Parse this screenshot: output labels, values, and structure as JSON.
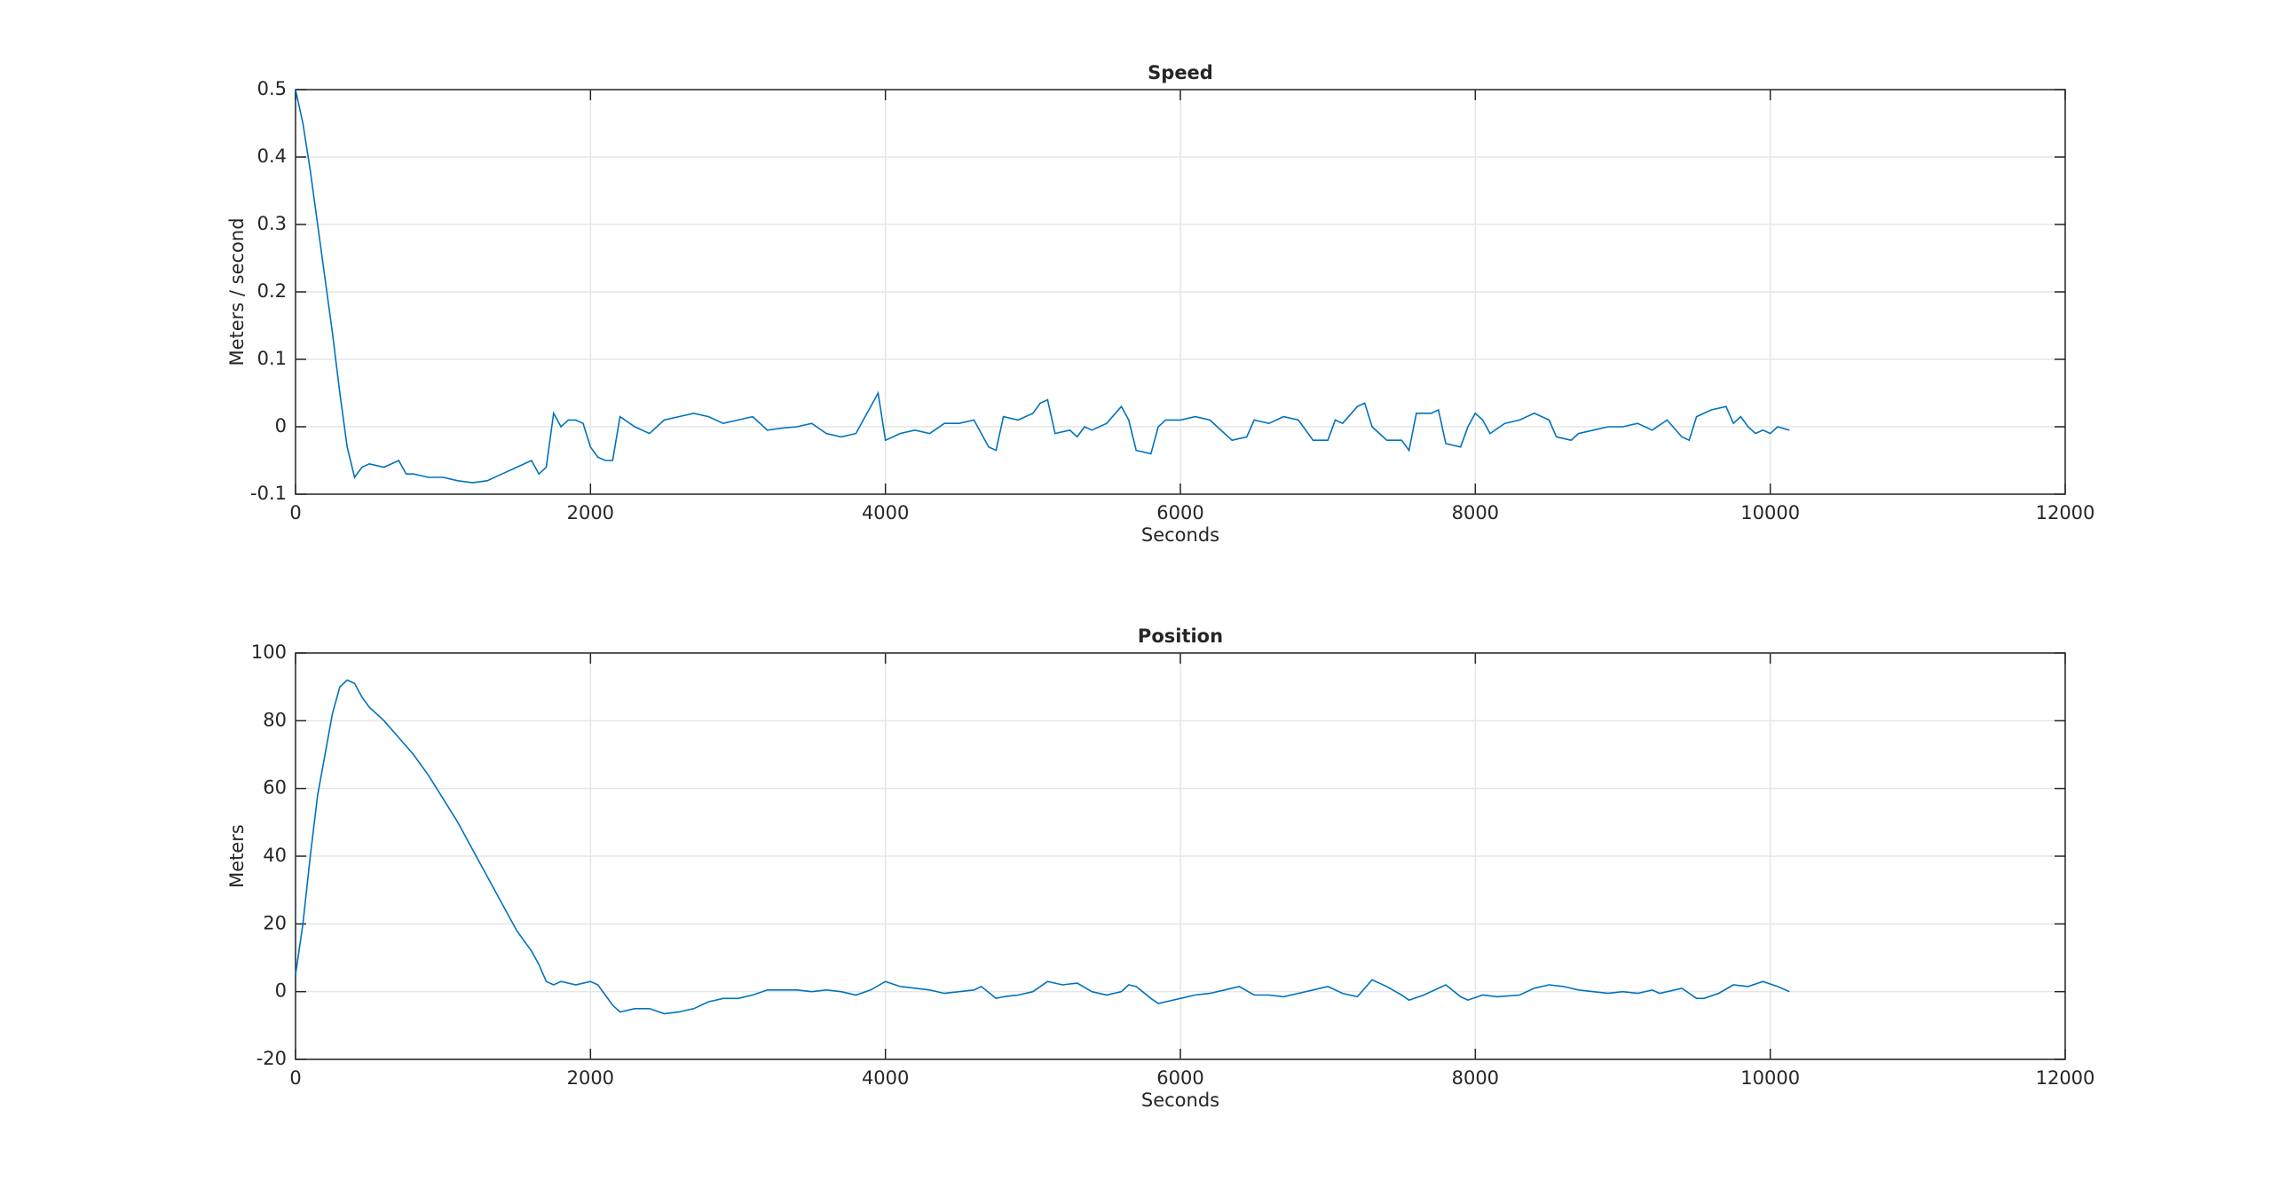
{
  "chart_data": [
    {
      "type": "line",
      "title": "Speed",
      "xlabel": "Seconds",
      "ylabel": "Meters / second",
      "color": "#0072bd",
      "grid": true,
      "xlim": [
        0,
        12000
      ],
      "xticks": [
        0,
        2000,
        4000,
        6000,
        8000,
        10000,
        12000
      ],
      "ylim": [
        -0.1,
        0.5
      ],
      "yticks": [
        -0.1,
        0,
        0.1,
        0.2,
        0.3,
        0.4,
        0.5
      ],
      "x": [
        0,
        50,
        100,
        150,
        200,
        250,
        300,
        350,
        400,
        450,
        500,
        600,
        700,
        750,
        800,
        900,
        1000,
        1100,
        1200,
        1300,
        1400,
        1500,
        1600,
        1650,
        1700,
        1750,
        1800,
        1850,
        1900,
        1950,
        2000,
        2050,
        2100,
        2150,
        2200,
        2300,
        2400,
        2500,
        2600,
        2700,
        2800,
        2900,
        3000,
        3100,
        3200,
        3300,
        3400,
        3500,
        3600,
        3700,
        3800,
        3850,
        3900,
        3950,
        4000,
        4100,
        4200,
        4300,
        4400,
        4500,
        4600,
        4700,
        4750,
        4800,
        4900,
        5000,
        5050,
        5100,
        5150,
        5250,
        5300,
        5350,
        5400,
        5500,
        5600,
        5650,
        5700,
        5800,
        5850,
        5900,
        6000,
        6100,
        6200,
        6350,
        6450,
        6500,
        6600,
        6700,
        6800,
        6900,
        7000,
        7050,
        7100,
        7200,
        7250,
        7300,
        7400,
        7500,
        7550,
        7600,
        7700,
        7750,
        7800,
        7900,
        7950,
        8000,
        8050,
        8100,
        8200,
        8300,
        8400,
        8500,
        8550,
        8650,
        8700,
        8800,
        8900,
        9000,
        9100,
        9200,
        9300,
        9400,
        9450,
        9500,
        9600,
        9700,
        9750,
        9800,
        9850,
        9900,
        9950,
        10000,
        10050,
        10130
      ],
      "values": [
        0.5,
        0.45,
        0.38,
        0.3,
        0.22,
        0.14,
        0.05,
        -0.03,
        -0.075,
        -0.06,
        -0.055,
        -0.06,
        -0.05,
        -0.07,
        -0.07,
        -0.075,
        -0.075,
        -0.08,
        -0.083,
        -0.08,
        -0.07,
        -0.06,
        -0.05,
        -0.07,
        -0.06,
        0.02,
        0.0,
        0.01,
        0.01,
        0.005,
        -0.03,
        -0.045,
        -0.05,
        -0.05,
        0.015,
        0.0,
        -0.01,
        0.01,
        0.015,
        0.02,
        0.015,
        0.005,
        0.01,
        0.015,
        -0.005,
        -0.002,
        0.0,
        0.005,
        -0.01,
        -0.015,
        -0.01,
        0.01,
        0.03,
        0.05,
        -0.02,
        -0.01,
        -0.005,
        -0.01,
        0.005,
        0.005,
        0.01,
        -0.03,
        -0.035,
        0.015,
        0.01,
        0.02,
        0.035,
        0.04,
        -0.01,
        -0.005,
        -0.015,
        0.0,
        -0.005,
        0.005,
        0.03,
        0.01,
        -0.035,
        -0.04,
        0.0,
        0.01,
        0.01,
        0.015,
        0.01,
        -0.02,
        -0.015,
        0.01,
        0.005,
        0.015,
        0.01,
        -0.02,
        -0.02,
        0.01,
        0.005,
        0.03,
        0.035,
        0.0,
        -0.02,
        -0.02,
        -0.035,
        0.02,
        0.02,
        0.025,
        -0.025,
        -0.03,
        0.0,
        0.02,
        0.01,
        -0.01,
        0.005,
        0.01,
        0.02,
        0.01,
        -0.015,
        -0.02,
        -0.01,
        -0.005,
        0.0,
        0.0,
        0.005,
        -0.005,
        0.01,
        -0.015,
        -0.02,
        0.015,
        0.025,
        0.03,
        0.005,
        0.015,
        0.0,
        -0.01,
        -0.005,
        -0.01,
        0.0,
        -0.005
      ]
    },
    {
      "type": "line",
      "title": "Position",
      "xlabel": "Seconds",
      "ylabel": "Meters",
      "color": "#0072bd",
      "grid": true,
      "xlim": [
        0,
        12000
      ],
      "xticks": [
        0,
        2000,
        4000,
        6000,
        8000,
        10000,
        12000
      ],
      "ylim": [
        -20,
        100
      ],
      "yticks": [
        -20,
        0,
        20,
        40,
        60,
        80,
        100
      ],
      "x": [
        0,
        50,
        100,
        150,
        200,
        250,
        300,
        350,
        400,
        450,
        500,
        600,
        700,
        800,
        900,
        1000,
        1100,
        1200,
        1300,
        1400,
        1500,
        1600,
        1650,
        1700,
        1750,
        1800,
        1900,
        2000,
        2050,
        2100,
        2150,
        2200,
        2300,
        2400,
        2500,
        2600,
        2700,
        2800,
        2900,
        3000,
        3100,
        3200,
        3300,
        3400,
        3500,
        3600,
        3700,
        3800,
        3900,
        4000,
        4100,
        4200,
        4300,
        4400,
        4500,
        4600,
        4650,
        4750,
        4800,
        4900,
        5000,
        5100,
        5200,
        5300,
        5400,
        5500,
        5600,
        5650,
        5700,
        5800,
        5850,
        5900,
        6000,
        6100,
        6200,
        6300,
        6400,
        6500,
        6600,
        6700,
        6800,
        6900,
        7000,
        7100,
        7200,
        7300,
        7400,
        7500,
        7550,
        7650,
        7800,
        7900,
        7950,
        8050,
        8150,
        8300,
        8400,
        8500,
        8600,
        8700,
        8800,
        8900,
        9000,
        9100,
        9200,
        9250,
        9350,
        9400,
        9500,
        9550,
        9650,
        9750,
        9850,
        9950,
        10050,
        10130
      ],
      "values": [
        5,
        20,
        40,
        58,
        70,
        82,
        90,
        92,
        91,
        87,
        84,
        80,
        75,
        70,
        64,
        57,
        50,
        42,
        34,
        26,
        18,
        12,
        8,
        3,
        2,
        3,
        2,
        3,
        2,
        -1,
        -4,
        -6,
        -5,
        -5,
        -6.5,
        -6,
        -5,
        -3,
        -2,
        -2,
        -1,
        0.5,
        0.5,
        0.5,
        0,
        0.5,
        0,
        -1,
        0.5,
        3,
        1.5,
        1,
        0.5,
        -0.5,
        0,
        0.5,
        1.5,
        -2,
        -1.5,
        -1,
        0,
        3,
        2,
        2.5,
        0,
        -1,
        0,
        2,
        1.5,
        -2,
        -3.5,
        -3,
        -2,
        -1,
        -0.5,
        0.5,
        1.5,
        -1,
        -1,
        -1.5,
        -0.5,
        0.5,
        1.5,
        -0.5,
        -1.5,
        3.5,
        1.5,
        -1,
        -2.5,
        -1,
        2,
        -1.5,
        -2.5,
        -1,
        -1.5,
        -1,
        1,
        2,
        1.5,
        0.5,
        0,
        -0.5,
        0,
        -0.5,
        0.5,
        -0.5,
        0.5,
        1,
        -2,
        -2,
        -0.5,
        2,
        1.5,
        3,
        1.5,
        0
      ]
    }
  ]
}
